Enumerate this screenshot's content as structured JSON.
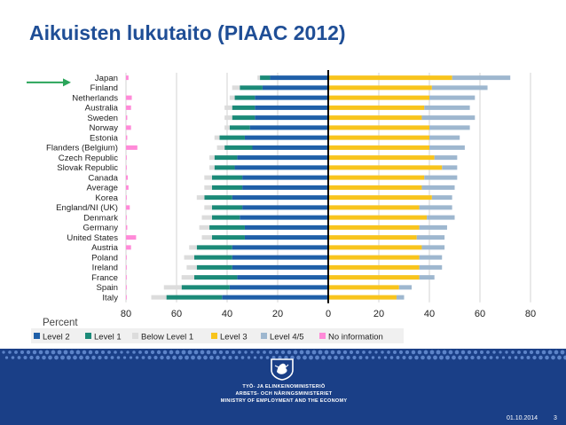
{
  "slide": {
    "title": "Aikuisten lukutaito (PIAAC 2012)",
    "date": "01.10.2014",
    "page_number": "3",
    "footer_lines": [
      "TYÖ- JA ELINKEINOMINISTERIÖ",
      "ARBETS- OCH NÄRINGSMINISTERIET",
      "MINISTRY OF EMPLOYMENT AND THE ECONOMY"
    ]
  },
  "colors": {
    "title": "#1f4e96",
    "level2": "#1f5fa8",
    "level1": "#1b8a78",
    "below_level1": "#dcdcdc",
    "level3": "#f8c41d",
    "level45": "#9eb7cf",
    "no_information": "#ff8ad8",
    "arrow": "#2aa55a",
    "footer": "#1a3f87"
  },
  "chart_data": {
    "type": "bar",
    "orientation": "horizontal-diverging",
    "xlabel": "Percent",
    "xlim": [
      -80,
      80
    ],
    "xticks": [
      "80",
      "60",
      "40",
      "20",
      "0",
      "20",
      "40",
      "60",
      "80"
    ],
    "highlighted_category": "Finland",
    "categories": [
      "Japan",
      "Finland",
      "Netherlands",
      "Australia",
      "Sweden",
      "Norway",
      "Estonia",
      "Flanders (Belgium)",
      "Czech Republic",
      "Slovak Republic",
      "Canada",
      "Average",
      "Korea",
      "England/NI (UK)",
      "Denmark",
      "Germany",
      "United States",
      "Austria",
      "Poland",
      "Ireland",
      "France",
      "Spain",
      "Italy"
    ],
    "series": [
      {
        "name": "Level 2",
        "side": "left",
        "values": [
          23,
          26,
          29,
          29,
          29,
          31,
          33,
          30,
          36,
          37,
          34,
          34,
          38,
          34,
          35,
          33,
          33,
          38,
          38,
          38,
          36,
          39,
          42
        ]
      },
      {
        "name": "Level 1",
        "side": "left",
        "values": [
          4,
          9,
          8,
          9,
          9,
          8,
          10,
          11,
          9,
          8,
          12,
          12,
          11,
          12,
          11,
          14,
          13,
          14,
          15,
          14,
          17,
          19,
          22
        ]
      },
      {
        "name": "Below Level 1",
        "side": "left",
        "values": [
          1,
          3,
          2,
          3,
          3,
          2,
          2,
          3,
          2,
          2,
          3,
          3,
          3,
          3,
          4,
          4,
          4,
          3,
          4,
          4,
          5,
          7,
          6
        ]
      },
      {
        "name": "Level 3",
        "side": "right",
        "values": [
          49,
          41,
          40,
          38,
          37,
          40,
          40,
          40,
          42,
          45,
          38,
          37,
          41,
          36,
          39,
          36,
          35,
          37,
          36,
          36,
          36,
          28,
          27
        ]
      },
      {
        "name": "Level 4/5",
        "side": "right",
        "values": [
          23,
          22,
          18,
          18,
          21,
          16,
          12,
          14,
          9,
          6,
          13,
          13,
          8,
          13,
          11,
          11,
          11,
          9,
          9,
          9,
          6,
          5,
          3
        ]
      },
      {
        "name": "No information",
        "side": "left-isolated",
        "values": [
          1,
          0,
          2.3,
          2,
          0.5,
          2,
          0.5,
          4.5,
          0.3,
          0.3,
          0.7,
          1,
          0.3,
          1.5,
          0.3,
          0.5,
          4,
          2,
          0.3,
          0.3,
          0.3,
          0.3,
          0.3
        ]
      }
    ],
    "legend": [
      "Level 2",
      "Level 1",
      "Below Level 1",
      "Level 3",
      "Level 4/5",
      "No information"
    ],
    "legend_position": "bottom",
    "grid": true
  }
}
